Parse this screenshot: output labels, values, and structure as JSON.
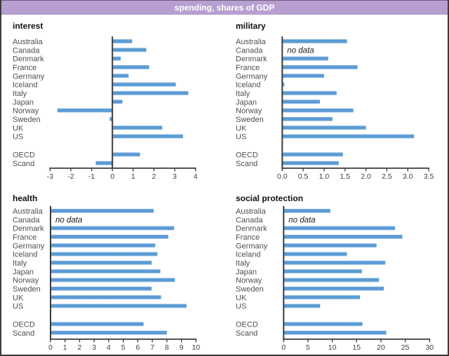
{
  "header": {
    "title": "spending, shares of GDP"
  },
  "colors": {
    "header_bg": "#b79fd1",
    "header_text": "#ffffff",
    "bar": "#5b9bd5",
    "bar_top": "#8cb8e4",
    "bar_bottom": "#cde0f3",
    "axis": "#3b3b3b",
    "label": "#4f4f4f",
    "tick_label": "#3f3f3f",
    "title_text": "#111111",
    "no_data_text_color": "#1a1a1a",
    "frame_border": "#3b3b3b",
    "background": "#ffffff"
  },
  "no_data_label": "no data",
  "chart_data": [
    {
      "type": "bar",
      "orientation": "horizontal",
      "title": "interest",
      "categories": [
        "Australia",
        "Canada",
        "Denmark",
        "France",
        "Germany",
        "Iceland",
        "Italy",
        "Japan",
        "Norway",
        "Sweden",
        "UK",
        "US",
        "OECD",
        "Scand"
      ],
      "values": [
        0.95,
        1.63,
        0.4,
        1.77,
        0.78,
        3.05,
        3.65,
        0.48,
        -2.65,
        -0.13,
        2.4,
        3.4,
        1.33,
        -0.8
      ],
      "xlim": [
        -3,
        4
      ],
      "ticks": [
        -3,
        -2,
        -1,
        0,
        1,
        2,
        3,
        4
      ],
      "tick_labels": [
        "-3",
        "-2",
        "-1",
        "0",
        "1",
        "2",
        "3",
        "4"
      ],
      "grid": false,
      "legend": false
    },
    {
      "type": "bar",
      "orientation": "horizontal",
      "title": "military",
      "categories": [
        "Australia",
        "Canada",
        "Denmark",
        "France",
        "Germany",
        "Iceland",
        "Italy",
        "Japan",
        "Norway",
        "Sweden",
        "UK",
        "US",
        "OECD",
        "Scand"
      ],
      "values": [
        1.55,
        null,
        1.1,
        1.8,
        1.0,
        0.05,
        1.3,
        0.9,
        1.7,
        1.2,
        2.0,
        3.15,
        1.45,
        1.35
      ],
      "xlim": [
        0,
        3.5
      ],
      "ticks": [
        0,
        0.5,
        1,
        1.5,
        2,
        2.5,
        3,
        3.5
      ],
      "tick_labels": [
        "0.0",
        "0.5",
        "1.0",
        "1.5",
        "2.0",
        "2.5",
        "3.0",
        "3.5"
      ],
      "grid": false,
      "legend": false
    },
    {
      "type": "bar",
      "orientation": "horizontal",
      "title": "health",
      "categories": [
        "Australia",
        "Canada",
        "Denmark",
        "France",
        "Germany",
        "Iceland",
        "Italy",
        "Japan",
        "Norway",
        "Sweden",
        "UK",
        "US",
        "OECD",
        "Scand"
      ],
      "values": [
        7.1,
        null,
        8.5,
        8.1,
        7.2,
        7.35,
        6.95,
        7.55,
        8.55,
        6.95,
        7.6,
        9.35,
        6.4,
        8.0
      ],
      "xlim": [
        0,
        10
      ],
      "ticks": [
        0,
        1,
        2,
        3,
        4,
        5,
        6,
        7,
        8,
        9,
        10
      ],
      "tick_labels": [
        "0",
        "1",
        "2",
        "3",
        "4",
        "5",
        "6",
        "7",
        "8",
        "9",
        "10"
      ],
      "grid": false,
      "legend": false
    },
    {
      "type": "bar",
      "orientation": "horizontal",
      "title": "social protection",
      "categories": [
        "Australia",
        "Canada",
        "Denmark",
        "France",
        "Germany",
        "Iceland",
        "Italy",
        "Japan",
        "Norway",
        "Sweden",
        "UK",
        "US",
        "OECD",
        "Scand"
      ],
      "values": [
        9.6,
        null,
        22.9,
        24.4,
        19.1,
        13.0,
        20.9,
        16.1,
        19.6,
        20.6,
        15.7,
        7.5,
        16.2,
        21.1
      ],
      "xlim": [
        0,
        30
      ],
      "ticks": [
        0,
        5,
        10,
        15,
        20,
        25,
        30
      ],
      "tick_labels": [
        "0",
        "5",
        "10",
        "15",
        "20",
        "25",
        "30"
      ],
      "grid": false,
      "legend": false
    }
  ]
}
